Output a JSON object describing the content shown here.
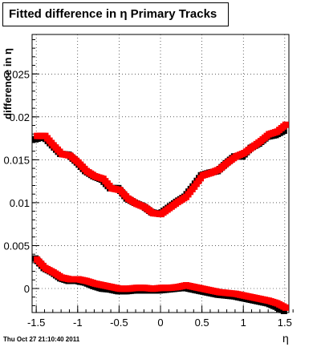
{
  "header": {
    "title": "Fitted difference in  η  Primary Tracks"
  },
  "footer": {
    "timestamp": "Thu Oct 27 21:10:40 2011"
  },
  "chart_data": {
    "type": "scatter",
    "title": "Fitted difference in  η  Primary Tracks",
    "xlabel": "η",
    "ylabel": "difference in η",
    "xlim": [
      -1.55,
      1.55
    ],
    "ylim": [
      -0.0028,
      0.0296
    ],
    "grid": true,
    "x_ticks": [
      -1.5,
      -1,
      -0.5,
      0,
      0.5,
      1,
      1.5
    ],
    "x_tick_labels": [
      "-1.5",
      "-1",
      "-0.5",
      "0",
      "0.5",
      "1",
      "1.5"
    ],
    "y_ticks": [
      0,
      0.005,
      0.01,
      0.015,
      0.02,
      0.025
    ],
    "y_tick_labels": [
      "0",
      "0.005",
      "0.01",
      "0.015",
      "0.02",
      "0.025"
    ],
    "colors": {
      "series_a": "#000000",
      "series_b": "#ff0000"
    },
    "series": [
      {
        "color": "#000000",
        "x": [
          -1.5,
          -1.4,
          -1.3,
          -1.2,
          -1.1,
          -1.0,
          -0.9,
          -0.8,
          -0.7,
          -0.6,
          -0.5,
          -0.4,
          -0.3,
          -0.2,
          -0.1,
          0.0,
          0.1,
          0.2,
          0.3,
          0.4,
          0.5,
          0.6,
          0.7,
          0.8,
          0.9,
          1.0,
          1.1,
          1.2,
          1.3,
          1.4,
          1.5
        ],
        "upper": [
          0.0175,
          0.0178,
          0.0168,
          0.0158,
          0.0157,
          0.0148,
          0.0138,
          0.0132,
          0.0128,
          0.0118,
          0.0118,
          0.0106,
          0.0101,
          0.0097,
          0.009,
          0.0088,
          0.0095,
          0.0102,
          0.0108,
          0.012,
          0.0133,
          0.0136,
          0.0138,
          0.0147,
          0.0155,
          0.0155,
          0.0165,
          0.017,
          0.0178,
          0.018,
          0.0185
        ],
        "lower": [
          0.0036,
          0.0025,
          0.002,
          0.0013,
          0.001,
          0.001,
          0.0008,
          0.0004,
          0.0001,
          0.0,
          -0.0002,
          -0.0002,
          -0.0001,
          -0.0001,
          -0.0001,
          -0.0001,
          0.0,
          0.0001,
          0.0002,
          0.0,
          -0.0002,
          -0.0004,
          -0.0006,
          -0.0007,
          -0.0008,
          -0.001,
          -0.0012,
          -0.0014,
          -0.0016,
          -0.002,
          -0.0025
        ]
      },
      {
        "color": "#ff0000",
        "x": [
          -1.5,
          -1.4,
          -1.3,
          -1.2,
          -1.1,
          -1.0,
          -0.9,
          -0.8,
          -0.7,
          -0.6,
          -0.5,
          -0.4,
          -0.3,
          -0.2,
          -0.1,
          0.0,
          0.1,
          0.2,
          0.3,
          0.4,
          0.5,
          0.6,
          0.7,
          0.8,
          0.9,
          1.0,
          1.1,
          1.2,
          1.3,
          1.4,
          1.5
        ],
        "upper": [
          0.0177,
          0.0177,
          0.0166,
          0.0156,
          0.0154,
          0.0146,
          0.0136,
          0.013,
          0.0127,
          0.0116,
          0.0114,
          0.0104,
          0.0098,
          0.0094,
          0.0087,
          0.0086,
          0.0093,
          0.01,
          0.0106,
          0.0118,
          0.0131,
          0.0134,
          0.0138,
          0.0146,
          0.0153,
          0.0157,
          0.0164,
          0.0171,
          0.0179,
          0.0182,
          0.019
        ],
        "lower": [
          0.0033,
          0.0023,
          0.0018,
          0.0012,
          0.001,
          0.001,
          0.0008,
          0.0005,
          0.0003,
          0.0001,
          -0.0001,
          -0.0001,
          0.0,
          0.0,
          -0.0001,
          0.0,
          0.0,
          0.0001,
          0.0003,
          0.0001,
          -0.0001,
          -0.0003,
          -0.0005,
          -0.0006,
          -0.0007,
          -0.0009,
          -0.0011,
          -0.0013,
          -0.0015,
          -0.0018,
          -0.0023
        ]
      }
    ]
  }
}
